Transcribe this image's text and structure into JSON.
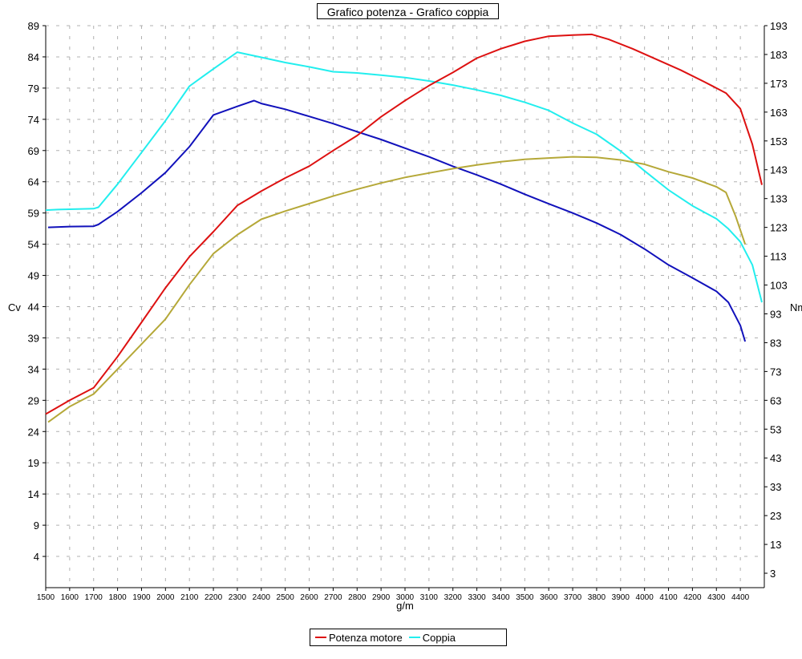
{
  "chart_data": {
    "type": "line",
    "title": "Grafico potenza - Grafico coppia",
    "xlabel": "g/m",
    "ylabel_left": "Cv",
    "ylabel_right": "Nm",
    "xlim": [
      1500,
      4500
    ],
    "xticks": [
      1500,
      1600,
      1700,
      1800,
      1900,
      2000,
      2100,
      2200,
      2300,
      2400,
      2500,
      2600,
      2700,
      2800,
      2900,
      3000,
      3100,
      3200,
      3300,
      3400,
      3500,
      3600,
      3700,
      3800,
      3900,
      4000,
      4100,
      4200,
      4300,
      4400
    ],
    "ylim_left": [
      -1,
      89
    ],
    "yticks_left": [
      4,
      9,
      14,
      19,
      24,
      29,
      34,
      39,
      44,
      49,
      54,
      59,
      64,
      69,
      74,
      79,
      84,
      89
    ],
    "ylim_right": [
      -2,
      193
    ],
    "yticks_right": [
      3,
      13,
      23,
      33,
      43,
      53,
      63,
      73,
      83,
      93,
      103,
      113,
      123,
      133,
      143,
      153,
      163,
      173,
      183,
      193
    ],
    "grid": true,
    "legend_placement": "bottom-center",
    "series": [
      {
        "name": "Potenza motore",
        "axis": "left",
        "color": "#dd1111",
        "points": [
          [
            1500,
            26.8
          ],
          [
            1600,
            29
          ],
          [
            1700,
            31
          ],
          [
            1800,
            36
          ],
          [
            1900,
            41.5
          ],
          [
            2000,
            47
          ],
          [
            2100,
            52
          ],
          [
            2200,
            56
          ],
          [
            2300,
            60.2
          ],
          [
            2400,
            62.5
          ],
          [
            2500,
            64.6
          ],
          [
            2600,
            66.5
          ],
          [
            2700,
            69
          ],
          [
            2800,
            71.4
          ],
          [
            2900,
            74.4
          ],
          [
            3000,
            77
          ],
          [
            3100,
            79.4
          ],
          [
            3200,
            81.5
          ],
          [
            3300,
            83.8
          ],
          [
            3400,
            85.3
          ],
          [
            3500,
            86.5
          ],
          [
            3600,
            87.3
          ],
          [
            3700,
            87.5
          ],
          [
            3780,
            87.6
          ],
          [
            3850,
            86.8
          ],
          [
            3950,
            85.3
          ],
          [
            4050,
            83.6
          ],
          [
            4150,
            81.9
          ],
          [
            4250,
            80
          ],
          [
            4340,
            78.2
          ],
          [
            4400,
            75.7
          ],
          [
            4450,
            70
          ],
          [
            4490,
            63.5
          ]
        ]
      },
      {
        "name": "Coppia",
        "axis": "right",
        "color": "#22eeee",
        "points": [
          [
            1500,
            129
          ],
          [
            1550,
            129.2
          ],
          [
            1600,
            129.3
          ],
          [
            1700,
            129.5
          ],
          [
            1720,
            130
          ],
          [
            1800,
            138
          ],
          [
            1900,
            149
          ],
          [
            2000,
            160
          ],
          [
            2100,
            172
          ],
          [
            2200,
            178
          ],
          [
            2300,
            183.8
          ],
          [
            2400,
            182
          ],
          [
            2500,
            180.2
          ],
          [
            2600,
            178.7
          ],
          [
            2700,
            177
          ],
          [
            2800,
            176.6
          ],
          [
            2900,
            175.8
          ],
          [
            3000,
            175
          ],
          [
            3100,
            173.8
          ],
          [
            3200,
            172.4
          ],
          [
            3300,
            170.7
          ],
          [
            3400,
            168.8
          ],
          [
            3500,
            166.4
          ],
          [
            3600,
            163.6
          ],
          [
            3700,
            159.2
          ],
          [
            3800,
            155.3
          ],
          [
            3900,
            149.5
          ],
          [
            4000,
            142.6
          ],
          [
            4100,
            136
          ],
          [
            4200,
            130.5
          ],
          [
            4300,
            126
          ],
          [
            4350,
            122.5
          ],
          [
            4400,
            118
          ],
          [
            4450,
            110
          ],
          [
            4490,
            97
          ]
        ]
      },
      {
        "name": "",
        "axis": "right",
        "color": "#1111bb",
        "points": [
          [
            1510,
            123
          ],
          [
            1600,
            123.3
          ],
          [
            1700,
            123.4
          ],
          [
            1720,
            124
          ],
          [
            1800,
            128.5
          ],
          [
            1900,
            135
          ],
          [
            2000,
            142
          ],
          [
            2100,
            151
          ],
          [
            2200,
            162
          ],
          [
            2300,
            165
          ],
          [
            2370,
            167
          ],
          [
            2400,
            166
          ],
          [
            2500,
            164
          ],
          [
            2600,
            161.5
          ],
          [
            2700,
            159
          ],
          [
            2800,
            156.2
          ],
          [
            2900,
            153.5
          ],
          [
            3000,
            150.5
          ],
          [
            3100,
            147.5
          ],
          [
            3200,
            144.2
          ],
          [
            3300,
            141.2
          ],
          [
            3400,
            138
          ],
          [
            3500,
            134.5
          ],
          [
            3600,
            131.2
          ],
          [
            3700,
            128
          ],
          [
            3800,
            124.5
          ],
          [
            3900,
            120.5
          ],
          [
            4000,
            115.5
          ],
          [
            4100,
            110
          ],
          [
            4200,
            105.5
          ],
          [
            4300,
            100.8
          ],
          [
            4350,
            97
          ],
          [
            4400,
            89
          ],
          [
            4420,
            83.4
          ]
        ]
      },
      {
        "name": "",
        "axis": "left",
        "color": "#b5a838",
        "points": [
          [
            1510,
            25.5
          ],
          [
            1600,
            28
          ],
          [
            1700,
            30
          ],
          [
            1800,
            34
          ],
          [
            1900,
            38
          ],
          [
            2000,
            42
          ],
          [
            2100,
            47.5
          ],
          [
            2200,
            52.5
          ],
          [
            2300,
            55.5
          ],
          [
            2400,
            58
          ],
          [
            2500,
            59.3
          ],
          [
            2600,
            60.5
          ],
          [
            2700,
            61.7
          ],
          [
            2800,
            62.8
          ],
          [
            2900,
            63.8
          ],
          [
            3000,
            64.7
          ],
          [
            3100,
            65.4
          ],
          [
            3200,
            66.1
          ],
          [
            3300,
            66.7
          ],
          [
            3400,
            67.2
          ],
          [
            3500,
            67.6
          ],
          [
            3600,
            67.8
          ],
          [
            3700,
            68
          ],
          [
            3800,
            67.9
          ],
          [
            3900,
            67.5
          ],
          [
            4000,
            66.8
          ],
          [
            4100,
            65.6
          ],
          [
            4200,
            64.6
          ],
          [
            4300,
            63.2
          ],
          [
            4340,
            62.3
          ],
          [
            4380,
            58.5
          ],
          [
            4420,
            54
          ]
        ]
      }
    ]
  }
}
